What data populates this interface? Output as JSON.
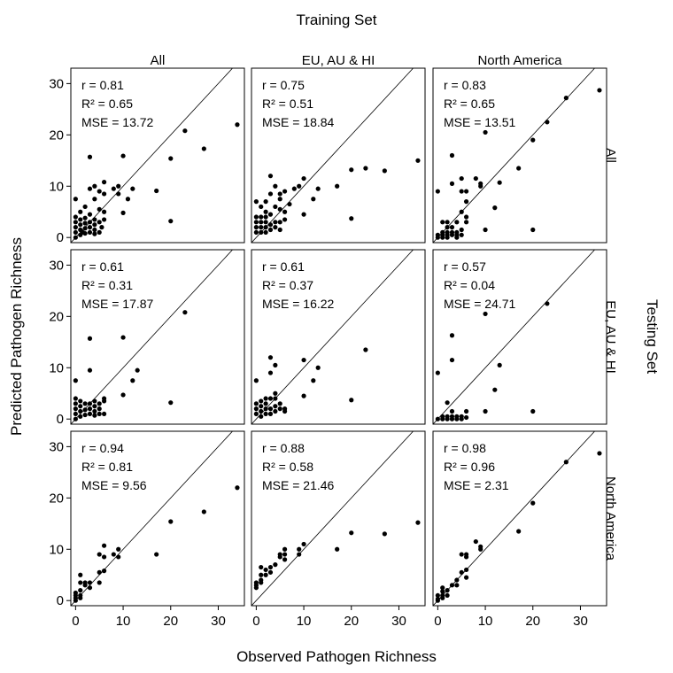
{
  "figure": {
    "title": "Training Set",
    "xlabel": "Observed Pathogen Richness",
    "ylabel": "Predicted Pathogen Richness",
    "right_label": "Testing Set",
    "columns": [
      "All",
      "EU, AU & HI",
      "North America"
    ],
    "rows": [
      "All",
      "EU, AU & HI",
      "North America"
    ],
    "x_ticks": [
      "0",
      "10",
      "20",
      "30"
    ],
    "y_ticks": [
      "0",
      "10",
      "20",
      "30"
    ]
  },
  "chart_data": [
    {
      "type": "scatter",
      "row": "All",
      "col": "All",
      "stats": [
        "r = 0.81",
        "R² = 0.65",
        "MSE = 13.72"
      ],
      "xlim": [
        -1,
        35.5
      ],
      "ylim": [
        -1,
        33
      ],
      "reference_line": "y = x",
      "points": [
        [
          0,
          0
        ],
        [
          0,
          1
        ],
        [
          0,
          2
        ],
        [
          0,
          3
        ],
        [
          0,
          4
        ],
        [
          0,
          7.5
        ],
        [
          1,
          0.5
        ],
        [
          1,
          1.5
        ],
        [
          1,
          2.5
        ],
        [
          1,
          3.5
        ],
        [
          1,
          5
        ],
        [
          1.5,
          1
        ],
        [
          2,
          0.8
        ],
        [
          2,
          1.8
        ],
        [
          2,
          2.8
        ],
        [
          2,
          3.8
        ],
        [
          2,
          6
        ],
        [
          3,
          1
        ],
        [
          3,
          2
        ],
        [
          3,
          3
        ],
        [
          3,
          4.5
        ],
        [
          3,
          9.5
        ],
        [
          3,
          15.7
        ],
        [
          4,
          0.7
        ],
        [
          4,
          1.5
        ],
        [
          4,
          2.5
        ],
        [
          4,
          3.5
        ],
        [
          4,
          7.5
        ],
        [
          4,
          10
        ],
        [
          5,
          1
        ],
        [
          5,
          3
        ],
        [
          5,
          5.5
        ],
        [
          5,
          9
        ],
        [
          5.5,
          2
        ],
        [
          6,
          3.5
        ],
        [
          6,
          5
        ],
        [
          6,
          8.5
        ],
        [
          6,
          10.8
        ],
        [
          8,
          9.5
        ],
        [
          9,
          10
        ],
        [
          9,
          8.5
        ],
        [
          10,
          4.8
        ],
        [
          10,
          15.9
        ],
        [
          11,
          7.5
        ],
        [
          12,
          9.5
        ],
        [
          17,
          9.1
        ],
        [
          20,
          3.2
        ],
        [
          20,
          15.4
        ],
        [
          23,
          20.8
        ],
        [
          27,
          17.3
        ],
        [
          34,
          22
        ]
      ]
    },
    {
      "type": "scatter",
      "row": "All",
      "col": "EU, AU & HI",
      "stats": [
        "r = 0.75",
        "R² = 0.51",
        "MSE = 18.84"
      ],
      "xlim": [
        -1,
        35.5
      ],
      "ylim": [
        -1,
        33
      ],
      "reference_line": "y = x",
      "points": [
        [
          0,
          1
        ],
        [
          0,
          2
        ],
        [
          0,
          3
        ],
        [
          0,
          4
        ],
        [
          0,
          7
        ],
        [
          1,
          1
        ],
        [
          1,
          2
        ],
        [
          1,
          3
        ],
        [
          1,
          4
        ],
        [
          1,
          6
        ],
        [
          2,
          1
        ],
        [
          2,
          2
        ],
        [
          2,
          3
        ],
        [
          2,
          4
        ],
        [
          2,
          5
        ],
        [
          2,
          7
        ],
        [
          3,
          1.5
        ],
        [
          3,
          2.5
        ],
        [
          3,
          4.5
        ],
        [
          3,
          8.5
        ],
        [
          3,
          12
        ],
        [
          4,
          2
        ],
        [
          4,
          3
        ],
        [
          4,
          6
        ],
        [
          4,
          10
        ],
        [
          5,
          1.5
        ],
        [
          5,
          3
        ],
        [
          5,
          5.5
        ],
        [
          5,
          7.5
        ],
        [
          5,
          8.5
        ],
        [
          6,
          3.5
        ],
        [
          6,
          5
        ],
        [
          6,
          9
        ],
        [
          7,
          6.5
        ],
        [
          8,
          9.5
        ],
        [
          9,
          10
        ],
        [
          10,
          4.5
        ],
        [
          10,
          11.5
        ],
        [
          12,
          7.5
        ],
        [
          13,
          9.5
        ],
        [
          17,
          10
        ],
        [
          20,
          3.7
        ],
        [
          20,
          13.2
        ],
        [
          23,
          13.5
        ],
        [
          27,
          13
        ],
        [
          34,
          15
        ]
      ]
    },
    {
      "type": "scatter",
      "row": "All",
      "col": "North America",
      "stats": [
        "r = 0.83",
        "R² = 0.65",
        "MSE = 13.51"
      ],
      "xlim": [
        -1,
        35.5
      ],
      "ylim": [
        -1,
        33
      ],
      "reference_line": "y = x",
      "points": [
        [
          0,
          0
        ],
        [
          0,
          0.5
        ],
        [
          0,
          9
        ],
        [
          1,
          0
        ],
        [
          1,
          0.5
        ],
        [
          1,
          1
        ],
        [
          1,
          3
        ],
        [
          2,
          0
        ],
        [
          2,
          0.5
        ],
        [
          2,
          1
        ],
        [
          2,
          2
        ],
        [
          2,
          3
        ],
        [
          3,
          0.5
        ],
        [
          3,
          1
        ],
        [
          3,
          2
        ],
        [
          3,
          10.5
        ],
        [
          3,
          16
        ],
        [
          4,
          0
        ],
        [
          4,
          0.5
        ],
        [
          4,
          1
        ],
        [
          4,
          3
        ],
        [
          5,
          0.5
        ],
        [
          5,
          1.5
        ],
        [
          5,
          5
        ],
        [
          5,
          9
        ],
        [
          5,
          11.5
        ],
        [
          6,
          3
        ],
        [
          6,
          4
        ],
        [
          6,
          7
        ],
        [
          6,
          9
        ],
        [
          8,
          11.5
        ],
        [
          9,
          10
        ],
        [
          9,
          10.5
        ],
        [
          10,
          1.5
        ],
        [
          10,
          20.5
        ],
        [
          12,
          5.8
        ],
        [
          13,
          10.7
        ],
        [
          17,
          13.5
        ],
        [
          20,
          1.5
        ],
        [
          20,
          19
        ],
        [
          23,
          22.5
        ],
        [
          27,
          27.2
        ],
        [
          34,
          28.7
        ]
      ]
    },
    {
      "type": "scatter",
      "row": "EU, AU & HI",
      "col": "All",
      "stats": [
        "r = 0.61",
        "R² = 0.31",
        "MSE = 17.87"
      ],
      "xlim": [
        -1,
        35.5
      ],
      "ylim": [
        -1,
        33
      ],
      "reference_line": "y = x",
      "points": [
        [
          0,
          0
        ],
        [
          0,
          1
        ],
        [
          0,
          2
        ],
        [
          0,
          3
        ],
        [
          0,
          4
        ],
        [
          0,
          7.5
        ],
        [
          1,
          0.5
        ],
        [
          1,
          1.5
        ],
        [
          1,
          2.5
        ],
        [
          1,
          3.5
        ],
        [
          2,
          0.8
        ],
        [
          2,
          1.8
        ],
        [
          2,
          3
        ],
        [
          3,
          1
        ],
        [
          3,
          2
        ],
        [
          3,
          3
        ],
        [
          3,
          9.5
        ],
        [
          3,
          15.7
        ],
        [
          4,
          0.7
        ],
        [
          4,
          1.5
        ],
        [
          4,
          2.5
        ],
        [
          4,
          3.5
        ],
        [
          5,
          1
        ],
        [
          5,
          2
        ],
        [
          5,
          3
        ],
        [
          6,
          1
        ],
        [
          6,
          3.5
        ],
        [
          6,
          4
        ],
        [
          10,
          4.7
        ],
        [
          10,
          15.9
        ],
        [
          12,
          7.5
        ],
        [
          13,
          9.5
        ],
        [
          20,
          3.2
        ],
        [
          23,
          20.8
        ]
      ]
    },
    {
      "type": "scatter",
      "row": "EU, AU & HI",
      "col": "EU, AU & HI",
      "stats": [
        "r = 0.61",
        "R² = 0.37",
        "MSE = 16.22"
      ],
      "xlim": [
        -1,
        35.5
      ],
      "ylim": [
        -1,
        33
      ],
      "reference_line": "y = x",
      "points": [
        [
          0,
          1
        ],
        [
          0,
          2
        ],
        [
          0,
          3
        ],
        [
          0,
          7.5
        ],
        [
          1,
          0.5
        ],
        [
          1,
          1.5
        ],
        [
          1,
          2.5
        ],
        [
          1,
          3.5
        ],
        [
          2,
          1
        ],
        [
          2,
          2
        ],
        [
          2,
          3
        ],
        [
          2,
          4
        ],
        [
          3,
          1
        ],
        [
          3,
          2
        ],
        [
          3,
          4
        ],
        [
          3,
          9
        ],
        [
          3,
          12
        ],
        [
          4,
          1.5
        ],
        [
          4,
          2.5
        ],
        [
          4,
          4
        ],
        [
          4,
          5
        ],
        [
          4,
          10.5
        ],
        [
          5,
          2
        ],
        [
          5,
          3
        ],
        [
          6,
          1.5
        ],
        [
          6,
          2
        ],
        [
          10,
          4.5
        ],
        [
          10,
          11.5
        ],
        [
          12,
          7.5
        ],
        [
          13,
          10
        ],
        [
          20,
          3.7
        ],
        [
          23,
          13.5
        ]
      ]
    },
    {
      "type": "scatter",
      "row": "EU, AU & HI",
      "col": "North America",
      "stats": [
        "r = 0.57",
        "R² = 0.04",
        "MSE = 24.71"
      ],
      "xlim": [
        -1,
        35.5
      ],
      "ylim": [
        -1,
        33
      ],
      "reference_line": "y = x",
      "points": [
        [
          0,
          0
        ],
        [
          0,
          9
        ],
        [
          1,
          0
        ],
        [
          1,
          0.5
        ],
        [
          2,
          0
        ],
        [
          2,
          0.5
        ],
        [
          2,
          3.2
        ],
        [
          3,
          0
        ],
        [
          3,
          0.5
        ],
        [
          3,
          1.5
        ],
        [
          3,
          11.5
        ],
        [
          3,
          16.3
        ],
        [
          4,
          0
        ],
        [
          4,
          0.5
        ],
        [
          5,
          0
        ],
        [
          5,
          0.5
        ],
        [
          6,
          0.3
        ],
        [
          6,
          1.5
        ],
        [
          10,
          1.5
        ],
        [
          10,
          20.5
        ],
        [
          12,
          5.7
        ],
        [
          13,
          10.5
        ],
        [
          20,
          1.5
        ],
        [
          23,
          22.5
        ]
      ]
    },
    {
      "type": "scatter",
      "row": "North America",
      "col": "All",
      "stats": [
        "r = 0.94",
        "R² = 0.81",
        "MSE = 9.56"
      ],
      "xlim": [
        -1,
        35.5
      ],
      "ylim": [
        -1,
        33
      ],
      "reference_line": "y = x",
      "points": [
        [
          0,
          0
        ],
        [
          0,
          0.5
        ],
        [
          0,
          1
        ],
        [
          0,
          1.5
        ],
        [
          1,
          0.5
        ],
        [
          1,
          1
        ],
        [
          1,
          2
        ],
        [
          1,
          3.5
        ],
        [
          1,
          5
        ],
        [
          2,
          3
        ],
        [
          2,
          3.5
        ],
        [
          3,
          2.5
        ],
        [
          3,
          3.5
        ],
        [
          5,
          3.5
        ],
        [
          5,
          5.5
        ],
        [
          5,
          9
        ],
        [
          6,
          5.8
        ],
        [
          6,
          8.5
        ],
        [
          6,
          10.7
        ],
        [
          8,
          9
        ],
        [
          9,
          8.5
        ],
        [
          9,
          10
        ],
        [
          17,
          9
        ],
        [
          20,
          15.4
        ],
        [
          27,
          17.3
        ],
        [
          34,
          22
        ]
      ]
    },
    {
      "type": "scatter",
      "row": "North America",
      "col": "EU, AU & HI",
      "stats": [
        "r = 0.88",
        "R² = 0.58",
        "MSE = 21.46"
      ],
      "xlim": [
        -1,
        35.5
      ],
      "ylim": [
        -1,
        33
      ],
      "reference_line": "y = x",
      "points": [
        [
          0,
          2.5
        ],
        [
          0,
          3
        ],
        [
          0,
          3.5
        ],
        [
          1,
          3.5
        ],
        [
          1,
          4
        ],
        [
          1,
          5
        ],
        [
          1,
          6.5
        ],
        [
          2,
          5
        ],
        [
          2,
          6
        ],
        [
          3,
          5.5
        ],
        [
          3,
          6.5
        ],
        [
          4,
          7
        ],
        [
          5,
          8.5
        ],
        [
          5,
          9
        ],
        [
          6,
          8
        ],
        [
          6,
          9
        ],
        [
          6,
          10
        ],
        [
          9,
          9
        ],
        [
          9,
          10
        ],
        [
          10,
          11
        ],
        [
          17,
          10
        ],
        [
          20,
          13.2
        ],
        [
          27,
          13
        ],
        [
          34,
          15.2
        ]
      ]
    },
    {
      "type": "scatter",
      "row": "North America",
      "col": "North America",
      "stats": [
        "r = 0.98",
        "R² = 0.96",
        "MSE = 2.31"
      ],
      "xlim": [
        -1,
        35.5
      ],
      "ylim": [
        -1,
        33
      ],
      "reference_line": "y = x",
      "points": [
        [
          0,
          0
        ],
        [
          0,
          0.3
        ],
        [
          0,
          1
        ],
        [
          1,
          0.5
        ],
        [
          1,
          1
        ],
        [
          1,
          1.8
        ],
        [
          1,
          2.5
        ],
        [
          2,
          1
        ],
        [
          2,
          2
        ],
        [
          3,
          3
        ],
        [
          4,
          3
        ],
        [
          4,
          4
        ],
        [
          5,
          5.5
        ],
        [
          5,
          9
        ],
        [
          6,
          4.5
        ],
        [
          6,
          8.5
        ],
        [
          6,
          9
        ],
        [
          6,
          6
        ],
        [
          8,
          11.5
        ],
        [
          9,
          10
        ],
        [
          9,
          10.5
        ],
        [
          17,
          13.5
        ],
        [
          20,
          19
        ],
        [
          27,
          27
        ],
        [
          34,
          28.7
        ]
      ]
    }
  ]
}
